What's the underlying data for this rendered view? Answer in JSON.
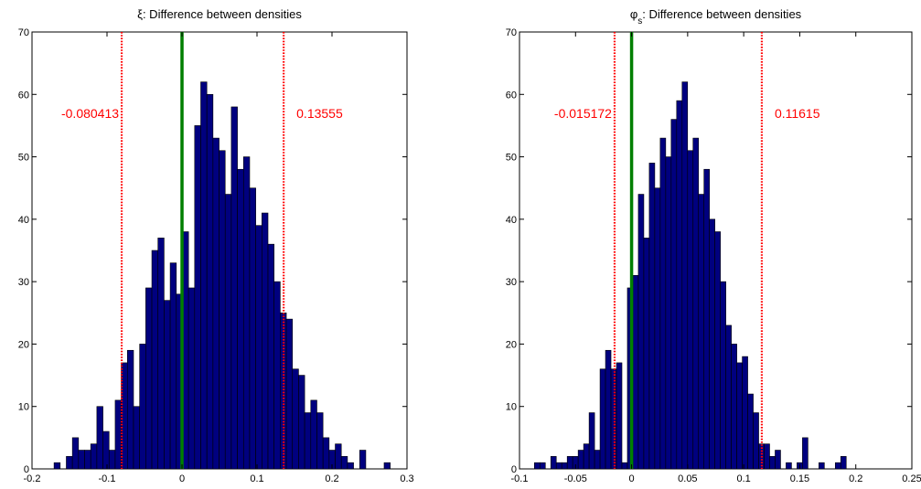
{
  "colors": {
    "bar": "#00007f",
    "bar_edge": "#000000",
    "zero_line": "#007f00",
    "interval": "#ff0000"
  },
  "chart_data": [
    {
      "type": "bar",
      "title_symbol": "ξ",
      "title_subscript": "",
      "title_text": ": Difference between densities",
      "xlim": [
        -0.2,
        0.3
      ],
      "ylim": [
        0,
        70
      ],
      "xticks": [
        "-0.2",
        "-0.1",
        "0",
        "0.1",
        "0.2",
        "0.3"
      ],
      "xtick_values": [
        -0.2,
        -0.1,
        0,
        0.1,
        0.2,
        0.3
      ],
      "yticks": [
        "0",
        "10",
        "20",
        "30",
        "40",
        "50",
        "60",
        "70"
      ],
      "ytick_values": [
        0,
        10,
        20,
        30,
        40,
        50,
        60,
        70
      ],
      "bin_start": -0.1706,
      "bin_width": 0.00815,
      "values": [
        1,
        0,
        2,
        5,
        3,
        3,
        4,
        10,
        6,
        3,
        11,
        17,
        19,
        10,
        20,
        29,
        35,
        37,
        27,
        33,
        28,
        38,
        29,
        55,
        62,
        60,
        53,
        51,
        44,
        58,
        48,
        50,
        45,
        39,
        41,
        36,
        30,
        25,
        24,
        16,
        15,
        9,
        11,
        9,
        5,
        3,
        4,
        2,
        1,
        0,
        3,
        0,
        0,
        0,
        1
      ],
      "zero_line": 0,
      "interval": [
        -0.080413,
        0.13555
      ],
      "interval_labels": [
        "-0.080413",
        "0.13555"
      ],
      "label_y": 57
    },
    {
      "type": "bar",
      "title_symbol": "φ",
      "title_subscript": "s",
      "title_text": ": Difference between densities",
      "xlim": [
        -0.1,
        0.25
      ],
      "ylim": [
        0,
        70
      ],
      "xticks": [
        "-0.1",
        "-0.05",
        "0",
        "0.05",
        "0.1",
        "0.15",
        "0.2",
        "0.25"
      ],
      "xtick_values": [
        -0.1,
        -0.05,
        0,
        0.05,
        0.1,
        0.15,
        0.2,
        0.25
      ],
      "yticks": [
        "0",
        "10",
        "20",
        "30",
        "40",
        "50",
        "60",
        "70"
      ],
      "ytick_values": [
        0,
        10,
        20,
        30,
        40,
        50,
        60,
        70
      ],
      "bin_start": -0.0867,
      "bin_width": 0.00488,
      "values": [
        1,
        1,
        0,
        2,
        1,
        1,
        2,
        2,
        3,
        4,
        9,
        3,
        16,
        19,
        16,
        17,
        1,
        29,
        31,
        44,
        37,
        49,
        45,
        53,
        50,
        56,
        59,
        62,
        51,
        53,
        44,
        48,
        40,
        38,
        30,
        23,
        20,
        17,
        18,
        12,
        9,
        4,
        4,
        2,
        3,
        0,
        1,
        0,
        1,
        5,
        0,
        0,
        1,
        0,
        0,
        1,
        2
      ],
      "zero_line": 0,
      "interval": [
        -0.015172,
        0.11615
      ],
      "interval_labels": [
        "-0.015172",
        "0.11615"
      ],
      "label_y": 57
    }
  ]
}
